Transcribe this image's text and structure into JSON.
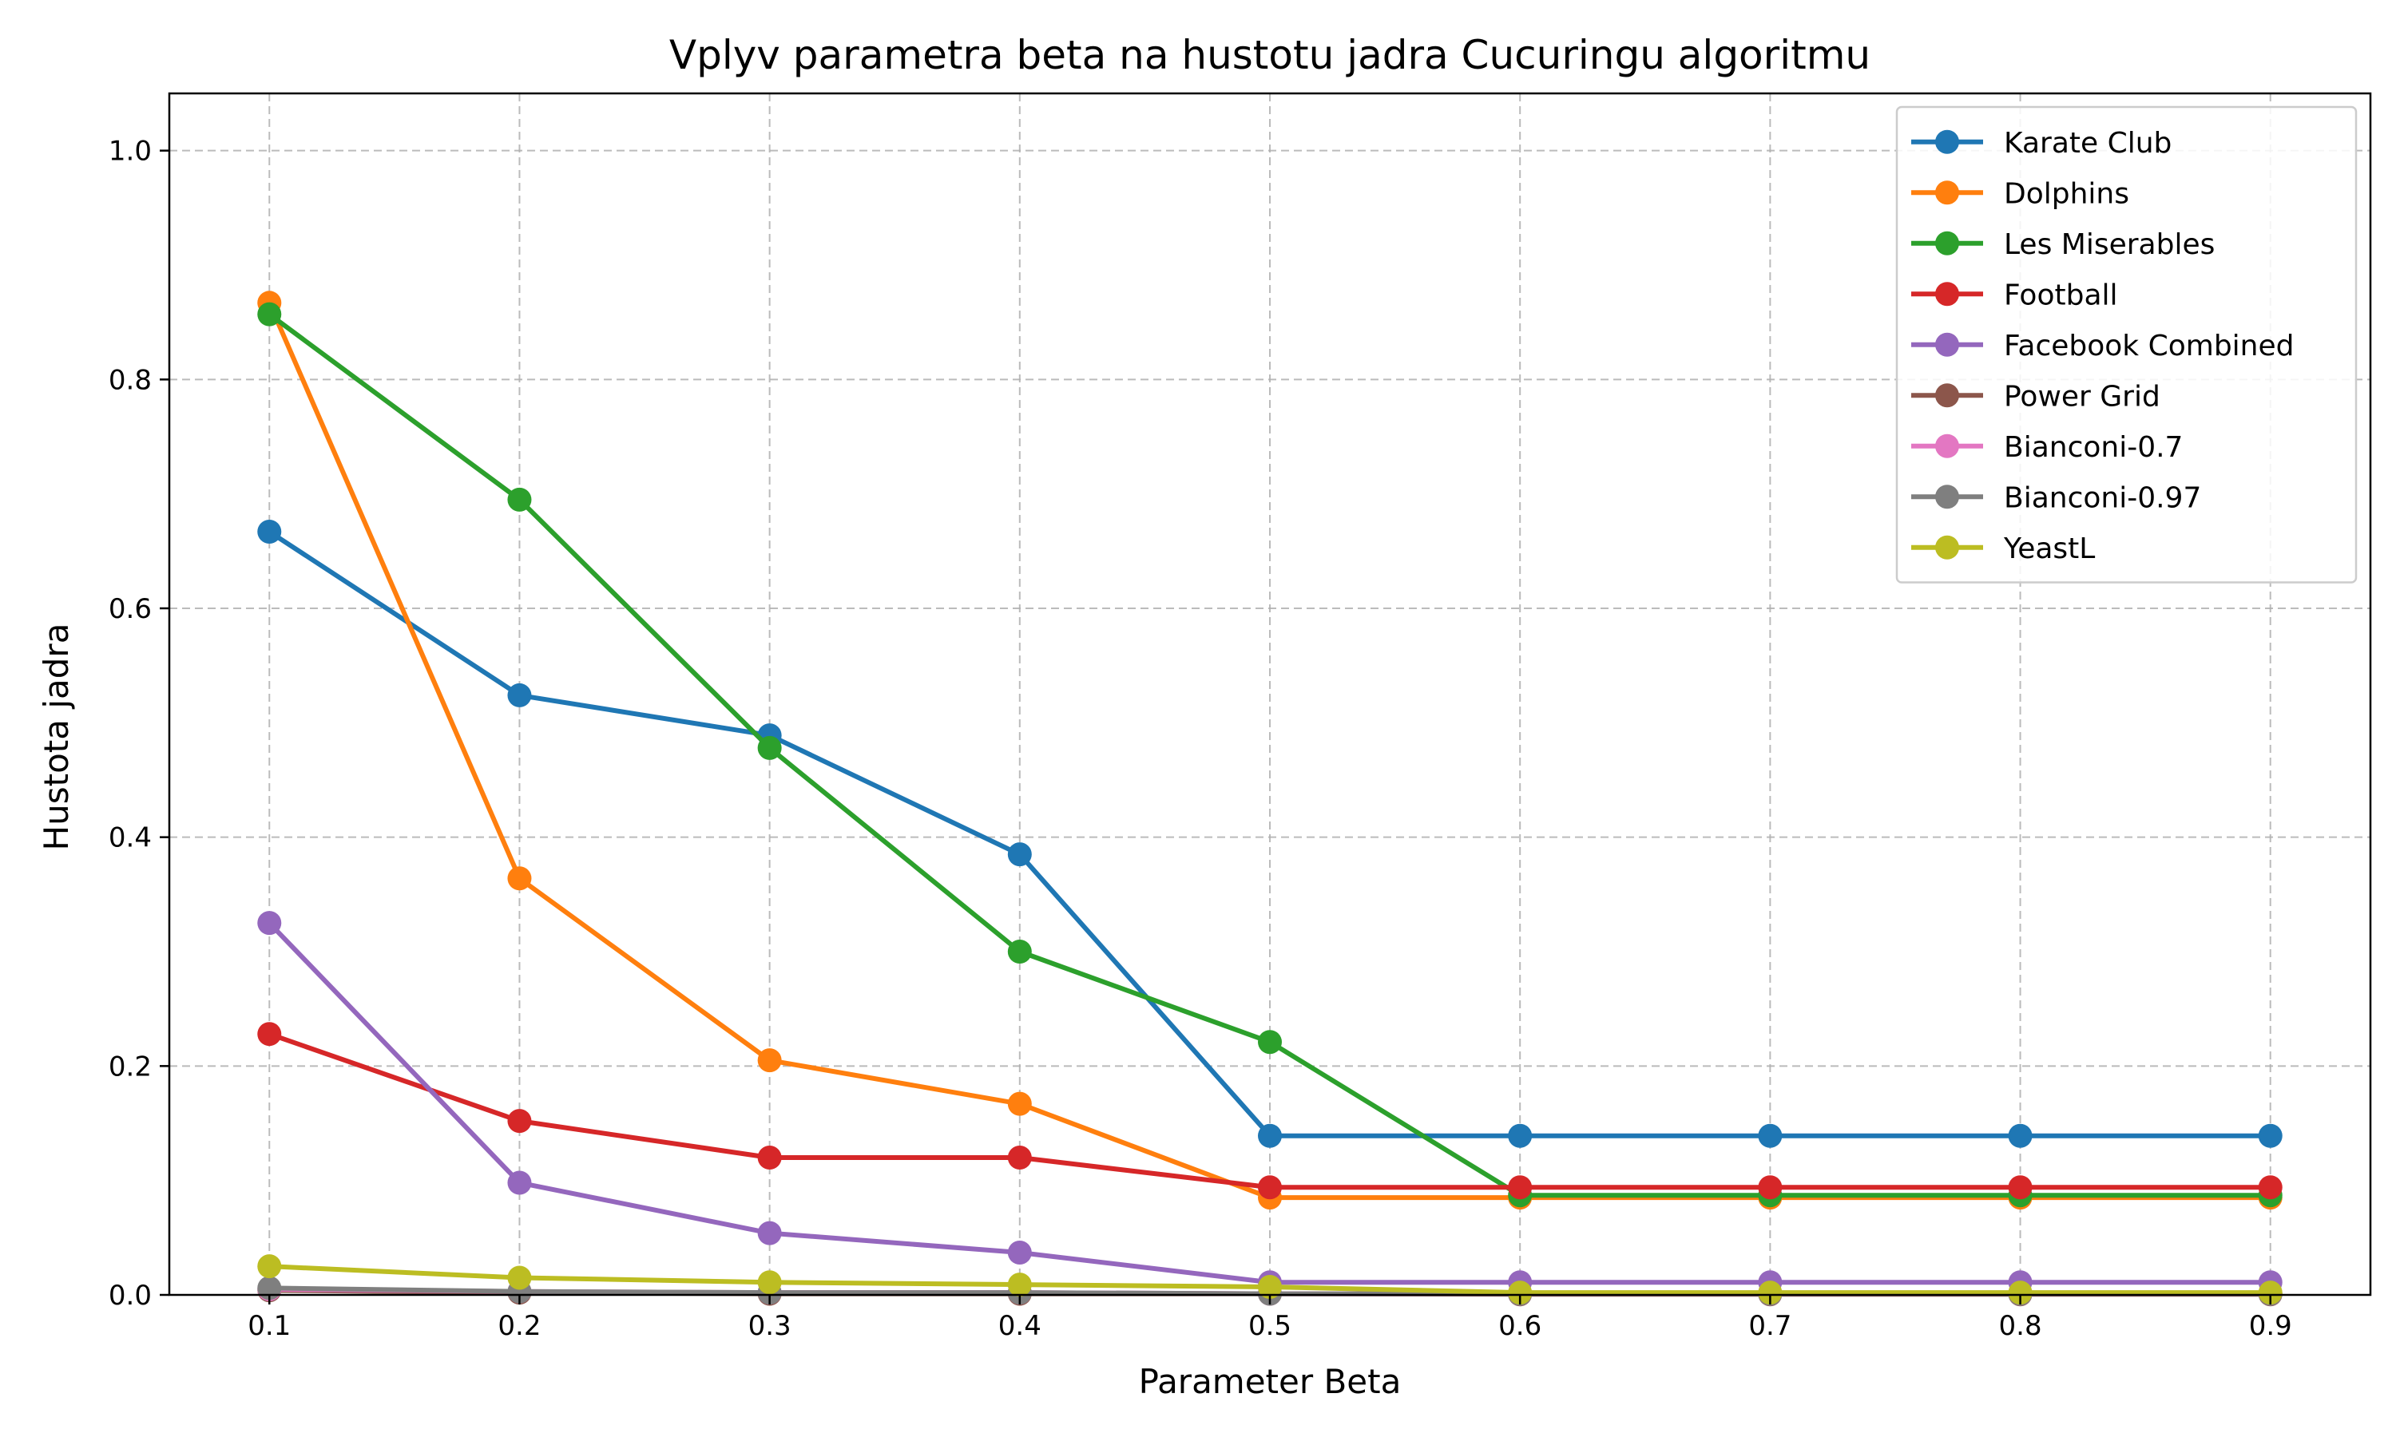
{
  "chart_data": {
    "type": "line",
    "title": "Vplyv parametra beta na hustotu jadra Cucuringu algoritmu",
    "xlabel": "Parameter Beta",
    "ylabel": "Hustota jadra",
    "x": [
      0.1,
      0.2,
      0.3,
      0.4,
      0.5,
      0.6,
      0.7,
      0.8,
      0.9
    ],
    "x_tick_labels": [
      "0.1",
      "0.2",
      "0.3",
      "0.4",
      "0.5",
      "0.6",
      "0.7",
      "0.8",
      "0.9"
    ],
    "xlim": [
      0.06,
      0.94
    ],
    "ylim": [
      0.0,
      1.05
    ],
    "y_ticks": [
      0.0,
      0.2,
      0.4,
      0.6,
      0.8,
      1.0
    ],
    "y_tick_labels": [
      "0.0",
      "0.2",
      "0.4",
      "0.6",
      "0.8",
      "1.0"
    ],
    "grid": true,
    "legend_position": "top-right",
    "series": [
      {
        "name": "Karate Club",
        "color": "#1f77b4",
        "values": [
          0.667,
          0.524,
          0.489,
          0.385,
          0.139,
          0.139,
          0.139,
          0.139,
          0.139
        ]
      },
      {
        "name": "Dolphins",
        "color": "#ff7f0e",
        "values": [
          0.867,
          0.364,
          0.205,
          0.167,
          0.085,
          0.085,
          0.085,
          0.085,
          0.085
        ]
      },
      {
        "name": "Les Miserables",
        "color": "#2ca02c",
        "values": [
          0.857,
          0.695,
          0.478,
          0.3,
          0.221,
          0.087,
          0.087,
          0.087,
          0.087
        ]
      },
      {
        "name": "Football",
        "color": "#d62728",
        "values": [
          0.228,
          0.152,
          0.12,
          0.12,
          0.094,
          0.094,
          0.094,
          0.094,
          0.094
        ]
      },
      {
        "name": "Facebook Combined",
        "color": "#9467bd",
        "values": [
          0.325,
          0.098,
          0.054,
          0.037,
          0.011,
          0.011,
          0.011,
          0.011,
          0.011
        ]
      },
      {
        "name": "Power Grid",
        "color": "#8c564b",
        "values": [
          0.004,
          0.002,
          0.001,
          0.001,
          0.001,
          0.0005,
          0.0005,
          0.0005,
          0.0005
        ]
      },
      {
        "name": "Bianconi-0.7",
        "color": "#e377c2",
        "values": [
          0.005,
          0.003,
          0.002,
          0.002,
          0.001,
          0.001,
          0.001,
          0.001,
          0.001
        ]
      },
      {
        "name": "Bianconi-0.97",
        "color": "#7f7f7f",
        "values": [
          0.006,
          0.003,
          0.002,
          0.002,
          0.001,
          0.001,
          0.001,
          0.001,
          0.001
        ]
      },
      {
        "name": "YeastL",
        "color": "#bcbd22",
        "values": [
          0.025,
          0.015,
          0.011,
          0.009,
          0.007,
          0.002,
          0.002,
          0.002,
          0.002
        ]
      }
    ]
  }
}
